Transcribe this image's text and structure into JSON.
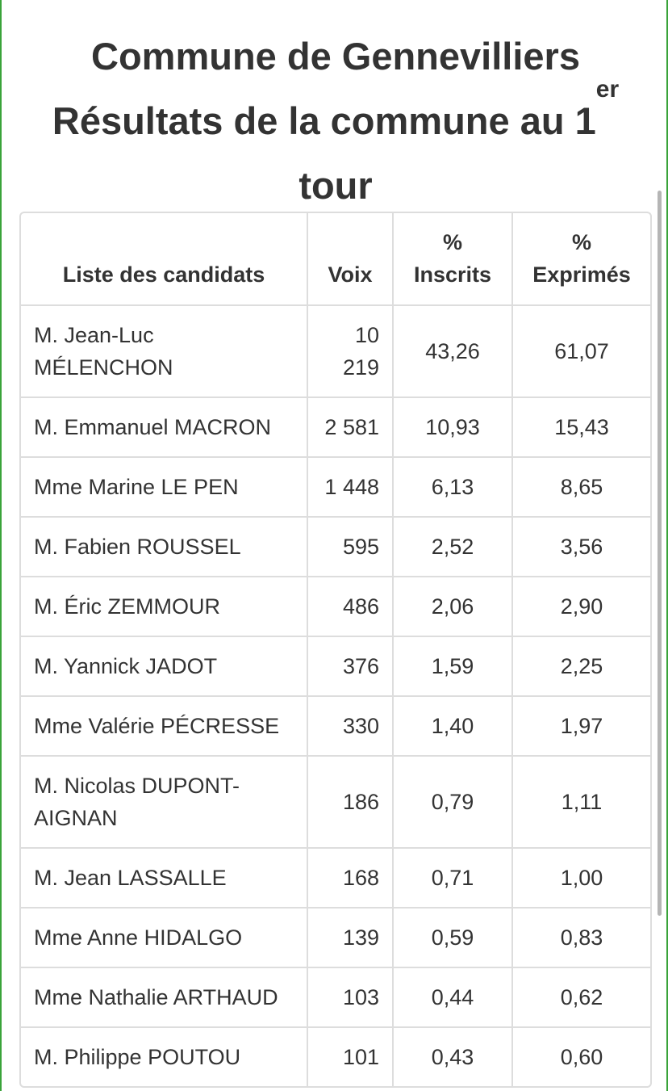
{
  "title": {
    "line1": "Commune de Gennevilliers",
    "line2": "Résultats de la commune au 1",
    "line2_sup": "er",
    "line3": "tour"
  },
  "table": {
    "headers": {
      "candidates": "Liste des candidats",
      "voix": "Voix",
      "inscrits_pct": "%",
      "inscrits": "Inscrits",
      "exprimes_pct": "%",
      "exprimes": "Exprimés"
    },
    "rows": [
      {
        "name": "M. Jean-Luc MÉLENCHON",
        "voix": "10 219",
        "inscrits": "43,26",
        "exprimes": "61,07"
      },
      {
        "name": "M. Emmanuel MACRON",
        "voix": "2 581",
        "inscrits": "10,93",
        "exprimes": "15,43"
      },
      {
        "name": "Mme Marine LE PEN",
        "voix": "1 448",
        "inscrits": "6,13",
        "exprimes": "8,65"
      },
      {
        "name": "M. Fabien ROUSSEL",
        "voix": "595",
        "inscrits": "2,52",
        "exprimes": "3,56"
      },
      {
        "name": "M. Éric ZEMMOUR",
        "voix": "486",
        "inscrits": "2,06",
        "exprimes": "2,90"
      },
      {
        "name": "M. Yannick JADOT",
        "voix": "376",
        "inscrits": "1,59",
        "exprimes": "2,25"
      },
      {
        "name": "Mme Valérie PÉCRESSE",
        "voix": "330",
        "inscrits": "1,40",
        "exprimes": "1,97"
      },
      {
        "name": "M. Nicolas DUPONT-AIGNAN",
        "voix": "186",
        "inscrits": "0,79",
        "exprimes": "1,11"
      },
      {
        "name": "M. Jean LASSALLE",
        "voix": "168",
        "inscrits": "0,71",
        "exprimes": "1,00"
      },
      {
        "name": "Mme Anne HIDALGO",
        "voix": "139",
        "inscrits": "0,59",
        "exprimes": "0,83"
      },
      {
        "name": "Mme Nathalie ARTHAUD",
        "voix": "103",
        "inscrits": "0,44",
        "exprimes": "0,62"
      },
      {
        "name": "M. Philippe POUTOU",
        "voix": "101",
        "inscrits": "0,43",
        "exprimes": "0,60"
      }
    ]
  },
  "colors": {
    "frame_accent": "#3aa33a",
    "text": "#333333",
    "table_border": "#dddddd"
  }
}
